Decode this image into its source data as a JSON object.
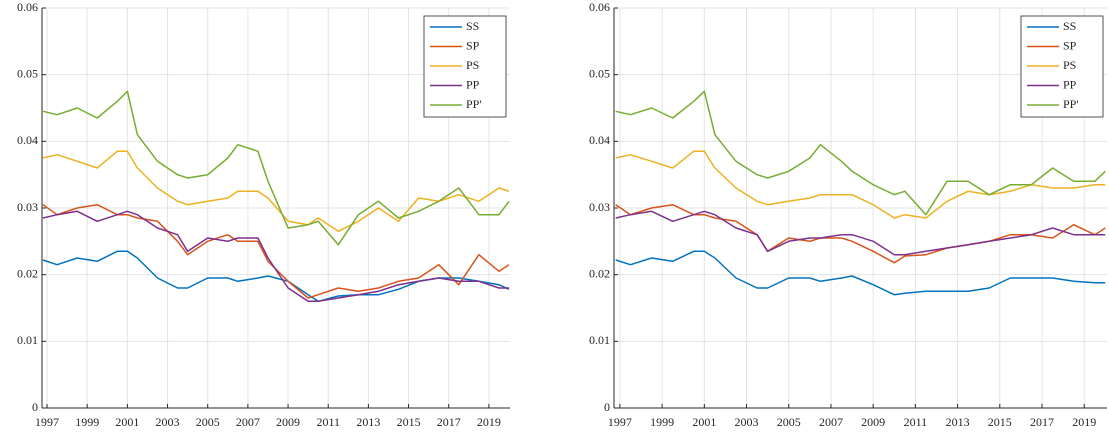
{
  "chart_data": [
    {
      "type": "line",
      "x": [
        1996.8,
        1997.5,
        1998.5,
        1999.5,
        2000.5,
        2001.0,
        2001.5,
        2002.5,
        2003.5,
        2004.0,
        2005.0,
        2006.0,
        2006.5,
        2007.5,
        2008.0,
        2009.0,
        2010.0,
        2010.5,
        2011.5,
        2012.5,
        2013.5,
        2014.5,
        2015.5,
        2016.5,
        2017.5,
        2018.5,
        2019.5,
        2020.0
      ],
      "xlim": [
        1996.75,
        2020.05
      ],
      "xticks": [
        1997,
        1999,
        2001,
        2003,
        2005,
        2007,
        2009,
        2011,
        2013,
        2015,
        2017,
        2019
      ],
      "ylim": [
        0,
        0.06
      ],
      "yticks": [
        0,
        0.01,
        0.02,
        0.03,
        0.04,
        0.05,
        0.06
      ],
      "grid": true,
      "legend": "upper right",
      "series": [
        {
          "name": "SS",
          "color": "#0072BD",
          "values": [
            0.0222,
            0.0215,
            0.0225,
            0.022,
            0.0235,
            0.0235,
            0.0225,
            0.0195,
            0.018,
            0.018,
            0.0195,
            0.0195,
            0.019,
            0.0195,
            0.0198,
            0.019,
            0.017,
            0.016,
            0.0168,
            0.017,
            0.017,
            0.0178,
            0.019,
            0.0195,
            0.0195,
            0.019,
            0.0185,
            0.0178
          ]
        },
        {
          "name": "SP",
          "color": "#D95319",
          "values": [
            0.0305,
            0.029,
            0.03,
            0.0305,
            0.029,
            0.029,
            0.0285,
            0.028,
            0.025,
            0.023,
            0.025,
            0.026,
            0.025,
            0.025,
            0.022,
            0.019,
            0.0165,
            0.017,
            0.018,
            0.0175,
            0.018,
            0.019,
            0.0195,
            0.0215,
            0.0185,
            0.023,
            0.0205,
            0.0215
          ]
        },
        {
          "name": "PS",
          "color": "#EDB120",
          "values": [
            0.0375,
            0.038,
            0.037,
            0.036,
            0.0385,
            0.0385,
            0.036,
            0.033,
            0.031,
            0.0305,
            0.031,
            0.0315,
            0.0325,
            0.0325,
            0.0315,
            0.028,
            0.0275,
            0.0285,
            0.0265,
            0.028,
            0.03,
            0.028,
            0.0315,
            0.031,
            0.032,
            0.031,
            0.033,
            0.0325
          ]
        },
        {
          "name": "PP",
          "color": "#7E2F8E",
          "values": [
            0.0285,
            0.029,
            0.0295,
            0.028,
            0.029,
            0.0295,
            0.029,
            0.027,
            0.026,
            0.0235,
            0.0255,
            0.025,
            0.0255,
            0.0255,
            0.0225,
            0.018,
            0.016,
            0.016,
            0.0165,
            0.017,
            0.0175,
            0.0185,
            0.019,
            0.0195,
            0.019,
            0.019,
            0.018,
            0.018
          ]
        },
        {
          "name": "PP'",
          "color": "#77AC30",
          "values": [
            0.0445,
            0.044,
            0.045,
            0.0435,
            0.046,
            0.0475,
            0.041,
            0.037,
            0.035,
            0.0345,
            0.035,
            0.0375,
            0.0395,
            0.0385,
            0.034,
            0.027,
            0.0275,
            0.028,
            0.0245,
            0.029,
            0.031,
            0.0285,
            0.0295,
            0.031,
            0.033,
            0.029,
            0.029,
            0.031
          ]
        }
      ]
    },
    {
      "type": "line",
      "x": [
        1996.8,
        1997.5,
        1998.5,
        1999.5,
        2000.5,
        2001.0,
        2001.5,
        2002.5,
        2003.5,
        2004.0,
        2005.0,
        2006.0,
        2006.5,
        2007.5,
        2008.0,
        2009.0,
        2010.0,
        2010.5,
        2011.5,
        2012.5,
        2013.5,
        2014.5,
        2015.5,
        2016.5,
        2017.5,
        2018.5,
        2019.5,
        2020.0
      ],
      "xlim": [
        1996.72,
        2020.08
      ],
      "xticks": [
        1997,
        1999,
        2001,
        2003,
        2005,
        2007,
        2009,
        2011,
        2013,
        2015,
        2017,
        2019
      ],
      "ylim": [
        0,
        0.06
      ],
      "yticks": [
        0,
        0.01,
        0.02,
        0.03,
        0.04,
        0.05,
        0.06
      ],
      "grid": true,
      "legend": "upper right",
      "series": [
        {
          "name": "SS",
          "color": "#0072BD",
          "values": [
            0.0222,
            0.0215,
            0.0225,
            0.022,
            0.0235,
            0.0235,
            0.0225,
            0.0195,
            0.018,
            0.018,
            0.0195,
            0.0195,
            0.019,
            0.0195,
            0.0198,
            0.0185,
            0.017,
            0.0172,
            0.0175,
            0.0175,
            0.0175,
            0.018,
            0.0195,
            0.0195,
            0.0195,
            0.019,
            0.0188,
            0.0188
          ]
        },
        {
          "name": "SP",
          "color": "#D95319",
          "values": [
            0.0305,
            0.029,
            0.03,
            0.0305,
            0.029,
            0.029,
            0.0285,
            0.028,
            0.026,
            0.0235,
            0.0255,
            0.025,
            0.0255,
            0.0255,
            0.025,
            0.0235,
            0.0218,
            0.0228,
            0.023,
            0.024,
            0.0245,
            0.025,
            0.026,
            0.026,
            0.0255,
            0.0275,
            0.026,
            0.027
          ]
        },
        {
          "name": "PS",
          "color": "#EDB120",
          "values": [
            0.0375,
            0.038,
            0.037,
            0.036,
            0.0385,
            0.0385,
            0.036,
            0.033,
            0.031,
            0.0305,
            0.031,
            0.0315,
            0.032,
            0.032,
            0.032,
            0.0305,
            0.0285,
            0.029,
            0.0285,
            0.031,
            0.0325,
            0.032,
            0.0325,
            0.0335,
            0.033,
            0.033,
            0.0335,
            0.0335
          ]
        },
        {
          "name": "PP",
          "color": "#7E2F8E",
          "values": [
            0.0285,
            0.029,
            0.0295,
            0.028,
            0.029,
            0.0295,
            0.029,
            0.027,
            0.026,
            0.0235,
            0.025,
            0.0255,
            0.0255,
            0.026,
            0.026,
            0.025,
            0.023,
            0.023,
            0.0235,
            0.024,
            0.0245,
            0.025,
            0.0255,
            0.026,
            0.027,
            0.026,
            0.026,
            0.026
          ]
        },
        {
          "name": "PP'",
          "color": "#77AC30",
          "values": [
            0.0445,
            0.044,
            0.045,
            0.0435,
            0.046,
            0.0475,
            0.041,
            0.037,
            0.035,
            0.0345,
            0.0355,
            0.0375,
            0.0395,
            0.037,
            0.0355,
            0.0335,
            0.032,
            0.0325,
            0.029,
            0.034,
            0.034,
            0.032,
            0.0335,
            0.0335,
            0.036,
            0.034,
            0.034,
            0.0355
          ]
        }
      ]
    }
  ]
}
